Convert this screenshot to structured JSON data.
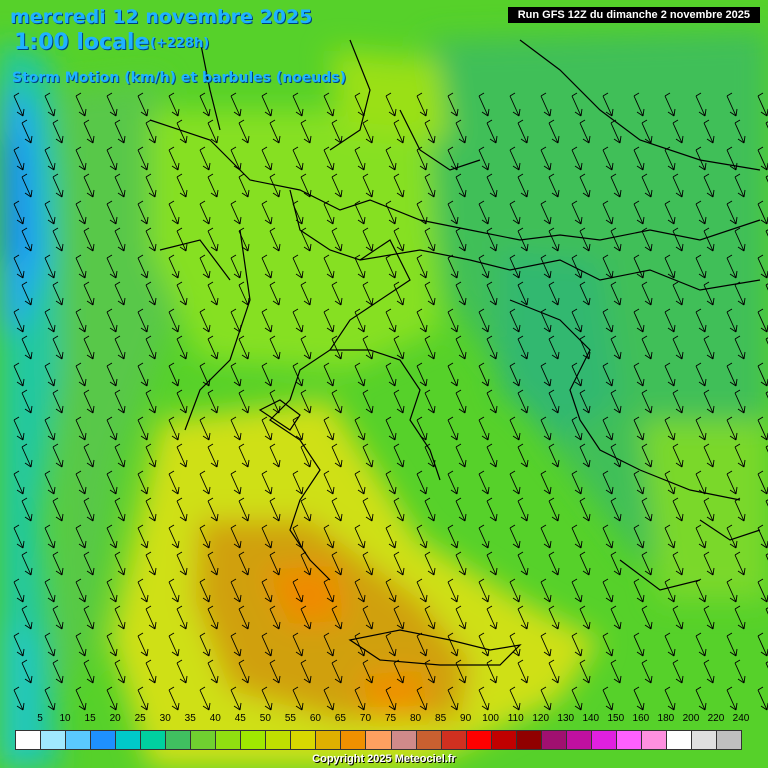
{
  "header": {
    "date": "mercredi 12 novembre 2025",
    "time": "1:00 locale",
    "lead": "(+228h)",
    "field": "Storm Motion (km/h) et barbules (noeuds)",
    "run": "Run GFS 12Z du dimanche 2 novembre 2025"
  },
  "legend": {
    "values": [
      "5",
      "10",
      "15",
      "20",
      "25",
      "30",
      "35",
      "40",
      "45",
      "50",
      "55",
      "60",
      "65",
      "70",
      "75",
      "80",
      "85",
      "90",
      "100",
      "110",
      "120",
      "130",
      "140",
      "150",
      "160",
      "180",
      "200",
      "220",
      "240"
    ],
    "colors": [
      "#ffffff",
      "#a0e8ff",
      "#5ac8ff",
      "#1e90ff",
      "#00c8c8",
      "#00d0a0",
      "#40c060",
      "#70d030",
      "#90e010",
      "#a0e800",
      "#c0e000",
      "#d8d800",
      "#e0b000",
      "#f09000",
      "#ffa060",
      "#d08a8a",
      "#c86030",
      "#d03020",
      "#ff0000",
      "#c00000",
      "#900000",
      "#a01070",
      "#c010a0",
      "#e020e0",
      "#ff60ff",
      "#ff90e0",
      "#ffffff",
      "#e0e0e0",
      "#c0c0c0"
    ]
  },
  "copyright": "Copyright 2025 Meteociel.fr"
}
